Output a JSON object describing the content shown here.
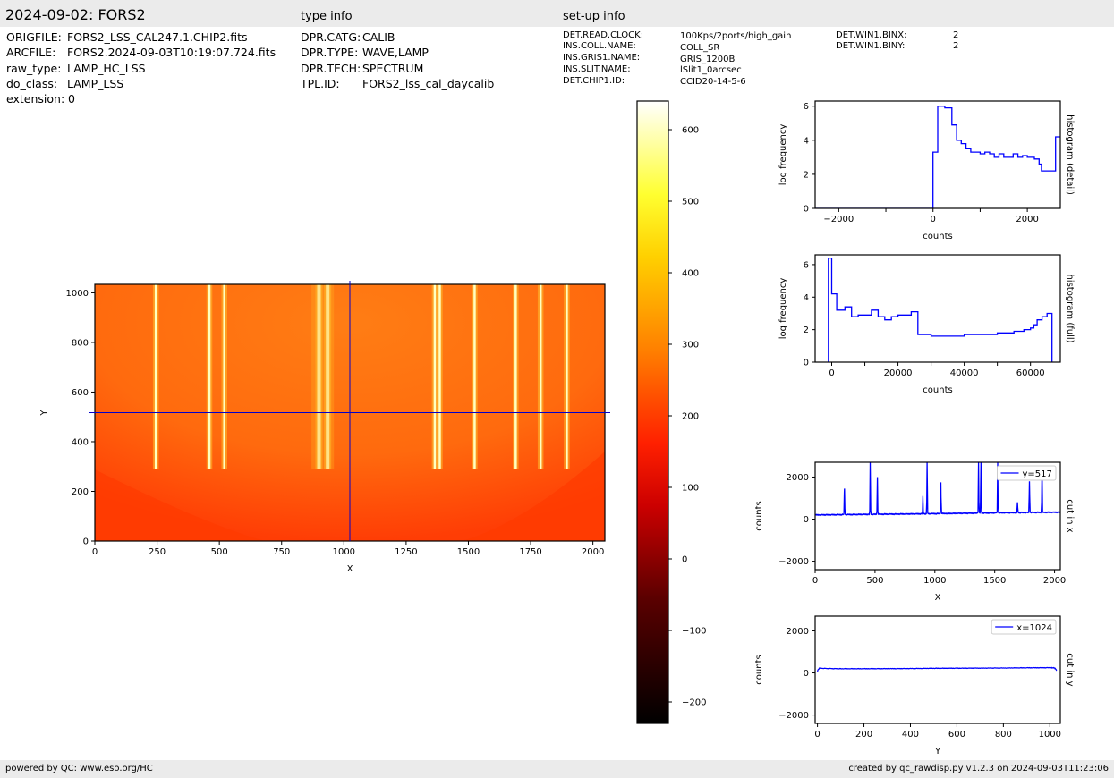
{
  "header": {
    "title": "2024-09-02: FORS2",
    "type_info_label": "type info",
    "setup_info_label": "set-up info"
  },
  "file_info": [
    {
      "key": "ORIGFILE:",
      "value": "FORS2_LSS_CAL247.1.CHIP2.fits"
    },
    {
      "key": "ARCFILE:",
      "value": "FORS2.2024-09-03T10:19:07.724.fits"
    },
    {
      "key": "raw_type:",
      "value": "LAMP_HC_LSS"
    },
    {
      "key": "do_class:",
      "value": "LAMP_LSS"
    },
    {
      "key": "extension:",
      "value": "0"
    }
  ],
  "type_info": [
    {
      "key": "DPR.CATG:",
      "value": "CALIB"
    },
    {
      "key": "DPR.TYPE:",
      "value": "WAVE,LAMP"
    },
    {
      "key": "DPR.TECH:",
      "value": "SPECTRUM"
    },
    {
      "key": "TPL.ID:",
      "value": "FORS2_lss_cal_daycalib"
    }
  ],
  "setup_info": [
    {
      "key": "DET.READ.CLOCK:",
      "value": "100Kps/2ports/high_gain"
    },
    {
      "key": "INS.COLL.NAME:",
      "value": "COLL_SR"
    },
    {
      "key": "INS.GRIS1.NAME:",
      "value": "GRIS_1200B"
    },
    {
      "key": "INS.SLIT.NAME:",
      "value": "lSlit1_0arcsec"
    },
    {
      "key": "DET.CHIP1.ID:",
      "value": "CCID20-14-5-6"
    }
  ],
  "setup_info2": [
    {
      "key": "DET.WIN1.BINX:",
      "value": "2"
    },
    {
      "key": "DET.WIN1.BINY:",
      "value": "2"
    }
  ],
  "footer": {
    "left": "powered by QC: www.eso.org/HC",
    "right": "created by qc_rawdisp.py v1.2.3 on 2024-09-03T11:23:06"
  },
  "colors": {
    "series": "#0000ff",
    "crosshair": "#0000cc",
    "band": "#ebebeb",
    "image_base": "#ff5a0a",
    "image_line": "#ffffc0"
  },
  "chart_data": [
    {
      "type": "heatmap",
      "title": "",
      "xlabel": "X",
      "ylabel": "Y",
      "xlim": [
        0,
        2048
      ],
      "ylim": [
        0,
        1034
      ],
      "xticks": [
        0,
        250,
        500,
        750,
        1000,
        1250,
        1500,
        1750,
        2000
      ],
      "yticks": [
        0,
        200,
        400,
        600,
        800,
        1000
      ],
      "colormap": "hot",
      "crosshair": {
        "x": 1024,
        "y": 517
      },
      "emission_lines_x": [
        245,
        460,
        520,
        900,
        935,
        1365,
        1385,
        1525,
        1690,
        1790,
        1895
      ],
      "grid": false
    },
    {
      "type": "colorbar",
      "ticks": [
        600,
        500,
        400,
        300,
        200,
        100,
        0,
        -100,
        -200
      ],
      "tick_labels": [
        "600",
        "500",
        "400",
        "300",
        "200",
        "100",
        "0",
        "−100",
        "−200"
      ],
      "range": [
        -230,
        640
      ]
    },
    {
      "type": "line",
      "step": true,
      "title": "",
      "xlabel": "counts",
      "ylabel": "log frequency",
      "side_label": "histogram (detail)",
      "xlim": [
        -2500,
        2700
      ],
      "ylim": [
        0,
        6.3
      ],
      "xticks": [
        -2000,
        0,
        2000
      ],
      "minor_xticks": [
        -1000,
        1000
      ],
      "yticks": [
        0,
        2,
        4,
        6
      ],
      "series": [
        {
          "x": [
            -2500,
            0,
            0,
            100,
            100,
            250,
            250,
            400,
            400,
            500,
            500,
            600,
            600,
            700,
            700,
            800,
            800,
            1000,
            1000,
            1100,
            1100,
            1200,
            1200,
            1300,
            1300,
            1400,
            1400,
            1500,
            1500,
            1700,
            1700,
            1800,
            1800,
            1900,
            1900,
            2000,
            2000,
            2150,
            2150,
            2250,
            2250,
            2300,
            2300,
            2450,
            2450,
            2600,
            2600,
            2700
          ],
          "y": [
            0,
            0,
            3.3,
            3.3,
            6.0,
            6.0,
            5.9,
            5.9,
            4.9,
            4.9,
            4.0,
            4.0,
            3.8,
            3.8,
            3.5,
            3.5,
            3.3,
            3.3,
            3.2,
            3.2,
            3.3,
            3.3,
            3.2,
            3.2,
            3.0,
            3.0,
            3.2,
            3.2,
            3.0,
            3.0,
            3.2,
            3.2,
            3.0,
            3.0,
            3.1,
            3.1,
            3.0,
            3.0,
            2.9,
            2.9,
            2.6,
            2.6,
            2.2,
            2.2,
            2.2,
            2.2,
            4.2,
            4.2
          ]
        }
      ]
    },
    {
      "type": "line",
      "step": true,
      "title": "",
      "xlabel": "counts",
      "ylabel": "log frequency",
      "side_label": "histogram (full)",
      "xlim": [
        -5000,
        69000
      ],
      "ylim": [
        0,
        6.6
      ],
      "xticks": [
        0,
        20000,
        40000,
        60000
      ],
      "minor_xticks": [
        10000,
        30000,
        50000
      ],
      "yticks": [
        0,
        2,
        4,
        6
      ],
      "series": [
        {
          "x": [
            -1000,
            -1000,
            0,
            0,
            1500,
            1500,
            4000,
            4000,
            6000,
            6000,
            8000,
            8000,
            12000,
            12000,
            14000,
            14000,
            16000,
            16000,
            18000,
            18000,
            20000,
            20000,
            24000,
            24000,
            26000,
            26000,
            30000,
            30000,
            40000,
            40000,
            50000,
            50000,
            55000,
            55000,
            58000,
            58000,
            60000,
            60000,
            61000,
            61000,
            62000,
            62000,
            63500,
            63500,
            65000,
            65000,
            66500,
            66500
          ],
          "y": [
            0,
            6.4,
            6.4,
            4.2,
            4.2,
            3.2,
            3.2,
            3.4,
            3.4,
            2.8,
            2.8,
            2.9,
            2.9,
            3.2,
            3.2,
            2.8,
            2.8,
            2.6,
            2.6,
            2.8,
            2.8,
            2.9,
            2.9,
            3.1,
            3.1,
            1.7,
            1.7,
            1.6,
            1.6,
            1.7,
            1.7,
            1.8,
            1.8,
            1.9,
            1.9,
            2.0,
            2.0,
            2.1,
            2.1,
            2.3,
            2.3,
            2.6,
            2.6,
            2.8,
            2.8,
            3.0,
            3.0,
            0
          ]
        }
      ]
    },
    {
      "type": "line",
      "title": "",
      "xlabel": "X",
      "ylabel": "counts",
      "side_label": "cut in x",
      "legend": "y=517",
      "legend_position": "top-right",
      "xlim": [
        0,
        2048
      ],
      "ylim": [
        -2400,
        2700
      ],
      "xticks": [
        0,
        500,
        1000,
        1500,
        2000
      ],
      "yticks": [
        -2000,
        0,
        2000
      ],
      "baseline": [
        [
          0,
          200
        ],
        [
          500,
          230
        ],
        [
          1000,
          260
        ],
        [
          1500,
          300
        ],
        [
          2048,
          330
        ]
      ],
      "peaks": [
        [
          245,
          1450
        ],
        [
          460,
          2700
        ],
        [
          520,
          2000
        ],
        [
          900,
          1100
        ],
        [
          935,
          2700
        ],
        [
          1050,
          1750
        ],
        [
          1365,
          2700
        ],
        [
          1385,
          2700
        ],
        [
          1525,
          2700
        ],
        [
          1690,
          800
        ],
        [
          1790,
          1800
        ],
        [
          1895,
          2400
        ]
      ]
    },
    {
      "type": "line",
      "title": "",
      "xlabel": "Y",
      "ylabel": "counts",
      "side_label": "cut in y",
      "legend": "x=1024",
      "legend_position": "top-right",
      "xlim": [
        -10,
        1045
      ],
      "ylim": [
        -2400,
        2700
      ],
      "xticks": [
        0,
        200,
        400,
        600,
        800,
        1000
      ],
      "yticks": [
        -2000,
        0,
        2000
      ],
      "series": [
        {
          "x": [
            0,
            3,
            8,
            100,
            200,
            300,
            400,
            500,
            600,
            700,
            800,
            900,
            1000,
            1020,
            1030
          ],
          "y": [
            80,
            160,
            220,
            200,
            200,
            205,
            210,
            220,
            225,
            230,
            235,
            245,
            250,
            240,
            120
          ]
        }
      ]
    }
  ]
}
